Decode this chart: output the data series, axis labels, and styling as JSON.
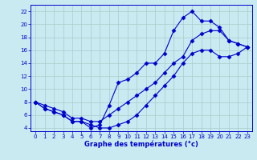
{
  "xlabel": "Graphe des températures (°c)",
  "line_color": "#0000cc",
  "marker": "D",
  "marker_size": 2.5,
  "bg_color": "#c8eaf0",
  "grid_color": "#aacccc",
  "ylim": [
    3.5,
    23
  ],
  "xlim": [
    -0.5,
    23.5
  ],
  "yticks": [
    4,
    6,
    8,
    10,
    12,
    14,
    16,
    18,
    20,
    22
  ],
  "xticks": [
    0,
    1,
    2,
    3,
    4,
    5,
    6,
    7,
    8,
    9,
    10,
    11,
    12,
    13,
    14,
    15,
    16,
    17,
    18,
    19,
    20,
    21,
    22,
    23
  ],
  "s1_x": [
    0,
    1,
    2,
    3,
    4,
    5,
    6,
    7,
    8,
    9,
    10,
    11,
    12,
    13,
    14,
    15,
    16,
    17,
    18,
    19,
    20,
    21,
    22,
    23
  ],
  "s1_y": [
    8,
    7,
    6.5,
    6,
    5,
    5,
    4,
    4.5,
    7.5,
    11,
    11.5,
    12.5,
    14,
    14,
    15.5,
    19,
    21,
    22,
    20.5,
    20.5,
    19.5,
    17.5,
    17,
    16.5
  ],
  "s2_x": [
    0,
    1,
    2,
    3,
    4,
    5,
    6,
    7,
    8,
    9,
    10,
    11,
    12,
    13,
    14,
    15,
    16,
    17,
    18,
    19,
    20,
    21,
    22,
    23
  ],
  "s2_y": [
    8,
    7.5,
    7,
    6.5,
    5.5,
    5.5,
    5,
    5,
    6,
    7,
    8,
    9,
    10,
    11,
    12.5,
    14,
    15,
    17.5,
    18.5,
    19,
    19,
    17.5,
    17,
    16.5
  ],
  "s3_x": [
    0,
    1,
    2,
    3,
    4,
    5,
    6,
    7,
    8,
    9,
    10,
    11,
    12,
    13,
    14,
    15,
    16,
    17,
    18,
    19,
    20,
    21,
    22,
    23
  ],
  "s3_y": [
    8,
    7,
    6.5,
    6,
    5,
    5,
    4.5,
    4,
    4,
    4.5,
    5,
    6,
    7.5,
    9,
    10.5,
    12,
    14,
    15.5,
    16,
    16,
    15,
    15,
    15.5,
    16.5
  ]
}
